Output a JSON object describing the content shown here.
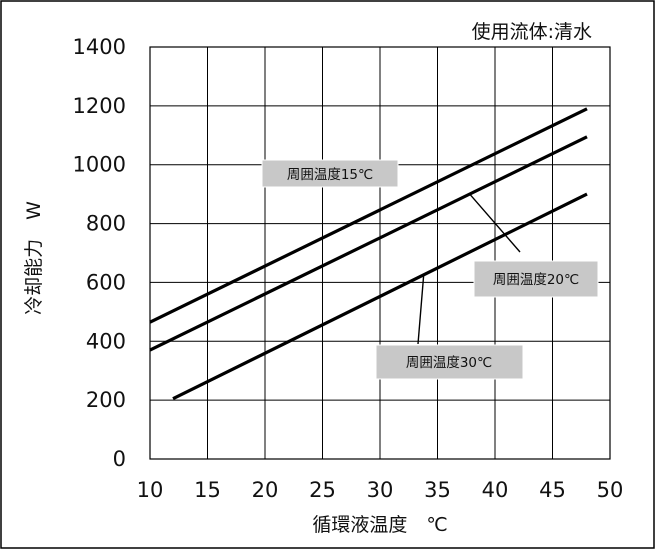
{
  "chart_data": {
    "type": "line",
    "note_label": "使用流体:清水",
    "xlabel": "循環液温度　℃",
    "ylabel": "冷却能力　W",
    "xlim": [
      10,
      50
    ],
    "ylim": [
      0,
      1400
    ],
    "x_ticks": [
      10,
      15,
      20,
      25,
      30,
      35,
      40,
      45,
      50
    ],
    "y_ticks": [
      0,
      200,
      400,
      600,
      800,
      1000,
      1200,
      1400
    ],
    "grid": true,
    "line_color": "#000000",
    "label_box_color": "#c8c8c8",
    "series": [
      {
        "name": "周囲温度15℃",
        "points": [
          [
            10,
            465
          ],
          [
            48,
            1190
          ]
        ]
      },
      {
        "name": "周囲温度20℃",
        "points": [
          [
            10,
            370
          ],
          [
            48,
            1095
          ]
        ]
      },
      {
        "name": "周囲温度30℃",
        "points": [
          [
            12,
            205
          ],
          [
            48,
            900
          ]
        ]
      }
    ]
  }
}
